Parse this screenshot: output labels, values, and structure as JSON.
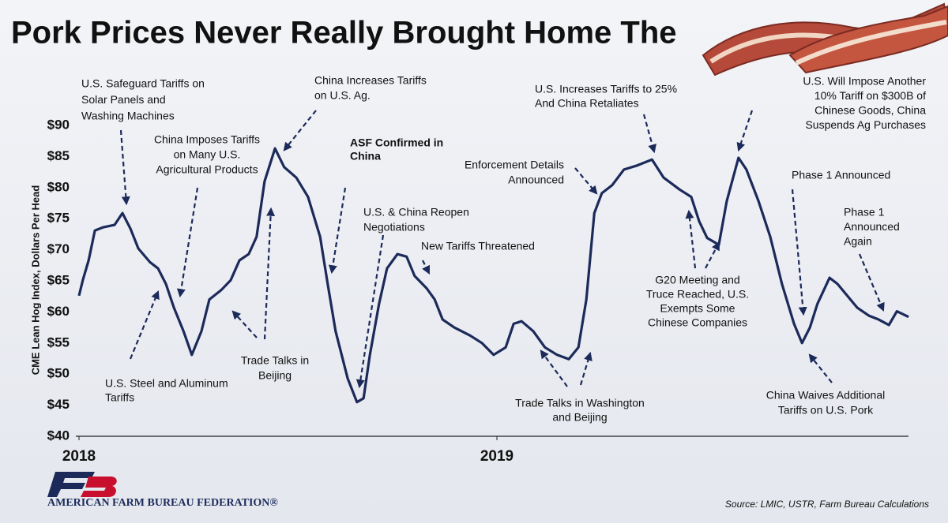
{
  "chart_data": {
    "type": "line",
    "title": "Pork Prices Never Really Brought Home The",
    "ylabel": "CME Lean Hog Index, Dollars Per Head",
    "source": "Source: LMIC, USTR, Farm Bureau Calculations",
    "logo": "AMERICAN FARM BUREAU FEDERATION®",
    "xlim": [
      2018,
      2020
    ],
    "xticks": [
      2018,
      2019
    ],
    "ylim": [
      40,
      90
    ],
    "yticks": [
      {
        "value": 40,
        "label": "$40"
      },
      {
        "value": 45,
        "label": "$45"
      },
      {
        "value": 50,
        "label": "$50"
      },
      {
        "value": 55,
        "label": "$55"
      },
      {
        "value": 60,
        "label": "$60"
      },
      {
        "value": 65,
        "label": "$65"
      },
      {
        "value": 70,
        "label": "$70"
      },
      {
        "value": 75,
        "label": "$75"
      },
      {
        "value": 80,
        "label": "$80"
      },
      {
        "value": 85,
        "label": "$85"
      },
      {
        "value": 90,
        "label": "$90"
      }
    ],
    "series": [
      {
        "name": "CME Lean Hog Index",
        "color": "#1c2a5a",
        "x": [
          2018,
          2018.009,
          2018.023,
          2018.038,
          2018.057,
          2018.085,
          2018.104,
          2018.123,
          2018.142,
          2018.17,
          2018.189,
          2018.208,
          2018.227,
          2018.25,
          2018.27,
          2018.293,
          2018.312,
          2018.34,
          2018.363,
          2018.384,
          2018.406,
          2018.425,
          2018.444,
          2018.469,
          2018.491,
          2018.52,
          2018.548,
          2018.577,
          2018.595,
          2018.614,
          2018.643,
          2018.665,
          2018.681,
          2018.696,
          2018.718,
          2018.737,
          2018.762,
          2018.784,
          2018.803,
          2018.832,
          2018.851,
          2018.87,
          2018.898,
          2018.936,
          2018.964,
          2018.992,
          2019.021,
          2019.04,
          2019.059,
          2019.087,
          2019.115,
          2019.144,
          2019.172,
          2019.195,
          2019.214,
          2019.233,
          2019.251,
          2019.276,
          2019.304,
          2019.333,
          2019.371,
          2019.399,
          2019.437,
          2019.465,
          2019.484,
          2019.503,
          2019.531,
          2019.55,
          2019.578,
          2019.597,
          2019.626,
          2019.654,
          2019.682,
          2019.711,
          2019.73,
          2019.749,
          2019.767,
          2019.796,
          2019.815,
          2019.862,
          2019.89,
          2019.913,
          2019.938,
          2019.957,
          2019.985
        ],
        "values": [
          62.6,
          65.1,
          68.3,
          73.1,
          73.6,
          74.0,
          75.9,
          73.4,
          70.2,
          68.0,
          67.0,
          64.5,
          60.7,
          56.9,
          53.1,
          56.9,
          62.0,
          63.5,
          65.1,
          68.3,
          69.3,
          72.1,
          81.0,
          86.3,
          83.3,
          81.6,
          78.5,
          72.1,
          64.5,
          56.9,
          49.3,
          45.5,
          46.1,
          53.1,
          61.3,
          67.0,
          69.3,
          68.9,
          65.8,
          63.8,
          62.0,
          58.8,
          57.5,
          56.2,
          55.0,
          53.1,
          54.3,
          58.1,
          58.5,
          56.9,
          54.3,
          53.1,
          52.4,
          54.3,
          62.0,
          75.9,
          79.1,
          80.4,
          82.9,
          83.5,
          84.5,
          81.6,
          79.7,
          78.5,
          74.6,
          71.9,
          70.8,
          77.8,
          84.8,
          82.9,
          77.8,
          72.1,
          64.5,
          58.1,
          55.0,
          57.5,
          61.3,
          65.5,
          64.5,
          60.7,
          59.4,
          58.8,
          57.9,
          60.1,
          59.2
        ]
      }
    ],
    "annotations": [
      [
        "U.S. Safeguard Tariffs on",
        "Solar Panels and",
        "Washing Machines"
      ],
      [
        "China Imposes Tariffs",
        "on Many U.S.",
        "Agricultural Products"
      ],
      [
        "China Increases Tariffs",
        "on U.S. Ag."
      ],
      [
        "ASF Confirmed in",
        "China"
      ],
      [
        "U.S. & China Reopen",
        "Negotiations"
      ],
      [
        "New Tariffs Threatened"
      ],
      [
        "U.S. Increases Tariffs to 25%",
        "And China Retaliates"
      ],
      [
        "Enforcement Details",
        "Announced"
      ],
      [
        "U.S. Will Impose Another",
        "10% Tariff on $300B of",
        "Chinese Goods, China",
        "Suspends Ag Purchases"
      ],
      [
        "Phase 1 Announced"
      ],
      [
        "Phase 1",
        "Announced",
        "Again"
      ],
      [
        "G20 Meeting and",
        "Truce Reached, U.S.",
        "Exempts Some",
        "Chinese Companies"
      ],
      [
        "U.S. Steel and Aluminum",
        "Tariffs"
      ],
      [
        "Trade Talks in",
        "Beijing"
      ],
      [
        "Trade Talks in Washington",
        "and Beijing"
      ],
      [
        "China Waives Additional",
        "Tariffs on U.S. Pork"
      ]
    ]
  }
}
